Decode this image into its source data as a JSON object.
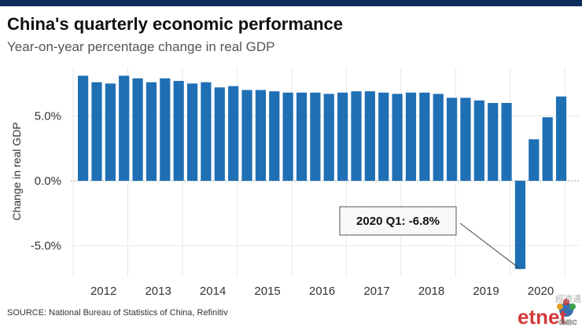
{
  "header": {
    "title": "China's quarterly economic performance",
    "subtitle": "Year-on-year percentage change in real GDP"
  },
  "footer": {
    "source": "SOURCE: National Bureau of Statistics of China, Refinitiv",
    "logo_text": "etnet",
    "logo_sub": "CNBC",
    "logo_chinese": "經濟通"
  },
  "colors": {
    "top_bar": "#0d2a5c",
    "bar": "#1f6fb4",
    "grid": "#e8e8e8",
    "zero_line": "#999999",
    "callout_border": "#555555",
    "callout_bg": "#f8f8f6"
  },
  "chart_data": {
    "type": "bar",
    "ylabel": "Change in real GDP",
    "ylim": [
      -7.5,
      8.5
    ],
    "yticks": [
      {
        "value": 5,
        "label": "5.0%"
      },
      {
        "value": 0,
        "label": "0.0%"
      },
      {
        "value": -5,
        "label": "-5.0%"
      }
    ],
    "grid": true,
    "year_labels": [
      "2012",
      "2013",
      "2014",
      "2015",
      "2016",
      "2017",
      "2018",
      "2019",
      "2020"
    ],
    "quarters": [
      "2012 Q1",
      "2012 Q2",
      "2012 Q3",
      "2012 Q4",
      "2013 Q1",
      "2013 Q2",
      "2013 Q3",
      "2013 Q4",
      "2014 Q1",
      "2014 Q2",
      "2014 Q3",
      "2014 Q4",
      "2015 Q1",
      "2015 Q2",
      "2015 Q3",
      "2015 Q4",
      "2016 Q1",
      "2016 Q2",
      "2016 Q3",
      "2016 Q4",
      "2017 Q1",
      "2017 Q2",
      "2017 Q3",
      "2017 Q4",
      "2018 Q1",
      "2018 Q2",
      "2018 Q3",
      "2018 Q4",
      "2019 Q1",
      "2019 Q2",
      "2019 Q3",
      "2019 Q4",
      "2020 Q1",
      "2020 Q2",
      "2020 Q3",
      "2020 Q4"
    ],
    "values": [
      8.1,
      7.6,
      7.5,
      8.1,
      7.9,
      7.6,
      7.9,
      7.7,
      7.5,
      7.6,
      7.2,
      7.3,
      7.0,
      7.0,
      6.9,
      6.8,
      6.8,
      6.8,
      6.7,
      6.8,
      6.9,
      6.9,
      6.8,
      6.7,
      6.8,
      6.8,
      6.7,
      6.4,
      6.4,
      6.2,
      6.0,
      6.0,
      -6.8,
      3.2,
      4.9,
      6.5
    ],
    "annotation": {
      "text": "2020 Q1: -6.8%",
      "quarter": "2020 Q1",
      "value": -6.8
    }
  }
}
